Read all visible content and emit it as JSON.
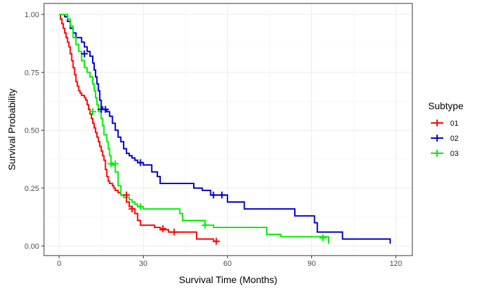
{
  "chart_data": {
    "type": "line",
    "xlabel": "Survival Time (Months)",
    "ylabel": "Survival Probability",
    "xlim": [
      0,
      120
    ],
    "ylim": [
      0,
      1
    ],
    "x_ticks": [
      "0",
      "30",
      "60",
      "90",
      "120"
    ],
    "y_ticks": [
      "0.00",
      "0.25",
      "0.50",
      "0.75",
      "1.00"
    ],
    "grid": true,
    "legend": {
      "title": "Subtype",
      "position": "right"
    },
    "series": [
      {
        "name": "01",
        "color": "#ff0000",
        "steps": [
          [
            0,
            1.0
          ],
          [
            0.5,
            0.98
          ],
          [
            1,
            0.96
          ],
          [
            1.5,
            0.94
          ],
          [
            2,
            0.92
          ],
          [
            2.5,
            0.9
          ],
          [
            3,
            0.88
          ],
          [
            3.5,
            0.86
          ],
          [
            4,
            0.83
          ],
          [
            4.5,
            0.8
          ],
          [
            5,
            0.77
          ],
          [
            5.5,
            0.74
          ],
          [
            6,
            0.71
          ],
          [
            6.5,
            0.69
          ],
          [
            7,
            0.67
          ],
          [
            7.5,
            0.66
          ],
          [
            8,
            0.65
          ],
          [
            9,
            0.64
          ],
          [
            9.5,
            0.63
          ],
          [
            10,
            0.61
          ],
          [
            10.5,
            0.59
          ],
          [
            11,
            0.57
          ],
          [
            11.5,
            0.55
          ],
          [
            12,
            0.53
          ],
          [
            12.5,
            0.51
          ],
          [
            13,
            0.49
          ],
          [
            13.5,
            0.47
          ],
          [
            14,
            0.45
          ],
          [
            14.5,
            0.43
          ],
          [
            15,
            0.41
          ],
          [
            15.5,
            0.39
          ],
          [
            16,
            0.37
          ],
          [
            16.5,
            0.33
          ],
          [
            17,
            0.3
          ],
          [
            17.5,
            0.28
          ],
          [
            18,
            0.27
          ],
          [
            19,
            0.26
          ],
          [
            19.5,
            0.25
          ],
          [
            20,
            0.24
          ],
          [
            21,
            0.23
          ],
          [
            22,
            0.22
          ],
          [
            24,
            0.19
          ],
          [
            25,
            0.17
          ],
          [
            26,
            0.16
          ],
          [
            27,
            0.14
          ],
          [
            28,
            0.11
          ],
          [
            29,
            0.09
          ],
          [
            34,
            0.08
          ],
          [
            36,
            0.07
          ],
          [
            39,
            0.06
          ],
          [
            49,
            0.03
          ],
          [
            55,
            0.02
          ],
          [
            57,
            0.02
          ]
        ],
        "censored": [
          [
            24,
            0.22
          ],
          [
            26,
            0.16
          ],
          [
            37,
            0.075
          ],
          [
            41,
            0.06
          ],
          [
            56,
            0.02
          ]
        ]
      },
      {
        "name": "02",
        "color": "#0000cc",
        "steps": [
          [
            0,
            1.0
          ],
          [
            1,
            1.0
          ],
          [
            2,
            0.99
          ],
          [
            3,
            0.97
          ],
          [
            4,
            0.94
          ],
          [
            5,
            0.92
          ],
          [
            6,
            0.9
          ],
          [
            8,
            0.88
          ],
          [
            9,
            0.86
          ],
          [
            10,
            0.84
          ],
          [
            11,
            0.82
          ],
          [
            12,
            0.79
          ],
          [
            12.5,
            0.76
          ],
          [
            13,
            0.73
          ],
          [
            13.5,
            0.7
          ],
          [
            14,
            0.67
          ],
          [
            14.5,
            0.63
          ],
          [
            15,
            0.6
          ],
          [
            15.5,
            0.59
          ],
          [
            17,
            0.58
          ],
          [
            18,
            0.56
          ],
          [
            19,
            0.53
          ],
          [
            20,
            0.5
          ],
          [
            21,
            0.47
          ],
          [
            22,
            0.45
          ],
          [
            23,
            0.42
          ],
          [
            24,
            0.4
          ],
          [
            25,
            0.39
          ],
          [
            26,
            0.38
          ],
          [
            27,
            0.37
          ],
          [
            28,
            0.36
          ],
          [
            30,
            0.35
          ],
          [
            33,
            0.32
          ],
          [
            35,
            0.3
          ],
          [
            36,
            0.27
          ],
          [
            48,
            0.25
          ],
          [
            51,
            0.24
          ],
          [
            54,
            0.22
          ],
          [
            60,
            0.19
          ],
          [
            66,
            0.16
          ],
          [
            84,
            0.13
          ],
          [
            91,
            0.1
          ],
          [
            92,
            0.06
          ],
          [
            101,
            0.03
          ],
          [
            118,
            0.01
          ]
        ],
        "censored": [
          [
            9,
            0.83
          ],
          [
            15,
            0.59
          ],
          [
            16.5,
            0.59
          ],
          [
            29,
            0.36
          ],
          [
            55,
            0.22
          ],
          [
            58,
            0.22
          ]
        ]
      },
      {
        "name": "03",
        "color": "#00ee00",
        "steps": [
          [
            0,
            1.0
          ],
          [
            3,
            0.98
          ],
          [
            4,
            0.95
          ],
          [
            5,
            0.9
          ],
          [
            6,
            0.87
          ],
          [
            7,
            0.84
          ],
          [
            8,
            0.8
          ],
          [
            9,
            0.77
          ],
          [
            10,
            0.75
          ],
          [
            11,
            0.73
          ],
          [
            12,
            0.7
          ],
          [
            12.5,
            0.67
          ],
          [
            13,
            0.64
          ],
          [
            13.5,
            0.61
          ],
          [
            14,
            0.58
          ],
          [
            15,
            0.55
          ],
          [
            15.5,
            0.52
          ],
          [
            16,
            0.48
          ],
          [
            17,
            0.45
          ],
          [
            17.5,
            0.42
          ],
          [
            18,
            0.39
          ],
          [
            18.5,
            0.36
          ],
          [
            19,
            0.35
          ],
          [
            20,
            0.32
          ],
          [
            21,
            0.26
          ],
          [
            22,
            0.22
          ],
          [
            23,
            0.21
          ],
          [
            25,
            0.2
          ],
          [
            26,
            0.19
          ],
          [
            27,
            0.18
          ],
          [
            28,
            0.17
          ],
          [
            30,
            0.16
          ],
          [
            43,
            0.14
          ],
          [
            44,
            0.11
          ],
          [
            52,
            0.09
          ],
          [
            55,
            0.08
          ],
          [
            74,
            0.05
          ],
          [
            79,
            0.04
          ],
          [
            96,
            0.01
          ]
        ],
        "censored": [
          [
            12,
            0.58
          ],
          [
            18.5,
            0.355
          ],
          [
            20,
            0.355
          ],
          [
            29,
            0.17
          ],
          [
            52,
            0.09
          ],
          [
            94,
            0.035
          ]
        ]
      }
    ]
  }
}
